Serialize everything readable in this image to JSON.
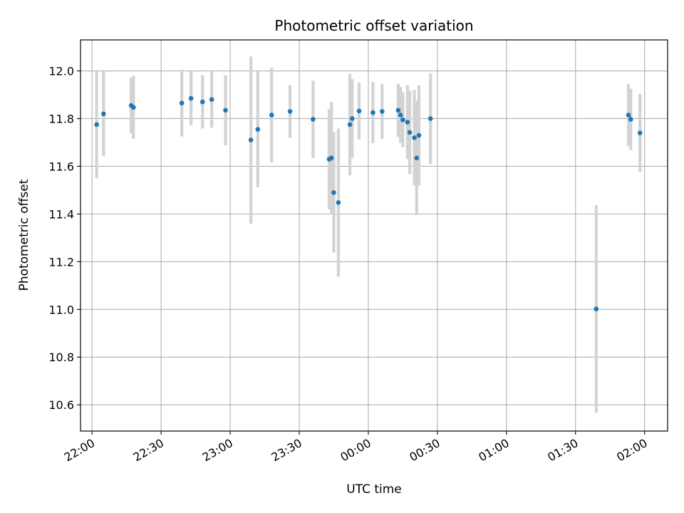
{
  "chart_data": {
    "type": "scatter",
    "title": "Photometric offset variation",
    "xlabel": "UTC time",
    "ylabel": "Photometric offset",
    "x_unit": "UTC time of day (HH:MM), 22:00 → 02:00 next day",
    "xlim": [
      "21:55",
      "02:10"
    ],
    "ylim": [
      10.49,
      12.13
    ],
    "grid": true,
    "x_ticks": [
      "22:00",
      "22:30",
      "23:00",
      "23:30",
      "00:00",
      "00:30",
      "01:00",
      "01:30",
      "02:00"
    ],
    "y_ticks": [
      "10.6",
      "10.8",
      "11.0",
      "11.2",
      "11.4",
      "11.6",
      "11.8",
      "12.0"
    ],
    "colors": {
      "points": "#1f77b4",
      "error_bars": "#d3d3d3",
      "grid": "#b0b0b0",
      "frame": "#000000"
    },
    "points": [
      {
        "x": "22:02",
        "y": 11.775,
        "err": 0.225
      },
      {
        "x": "22:05",
        "y": 11.82,
        "err": 0.178
      },
      {
        "x": "22:17",
        "y": 11.855,
        "err": 0.117
      },
      {
        "x": "22:18",
        "y": 11.847,
        "err": 0.132
      },
      {
        "x": "22:39",
        "y": 11.865,
        "err": 0.14
      },
      {
        "x": "22:43",
        "y": 11.885,
        "err": 0.113
      },
      {
        "x": "22:48",
        "y": 11.87,
        "err": 0.112
      },
      {
        "x": "22:52",
        "y": 11.88,
        "err": 0.118
      },
      {
        "x": "22:58",
        "y": 11.835,
        "err": 0.147
      },
      {
        "x": "23:09",
        "y": 11.71,
        "err": 0.35
      },
      {
        "x": "23:12",
        "y": 11.755,
        "err": 0.243
      },
      {
        "x": "23:18",
        "y": 11.815,
        "err": 0.198
      },
      {
        "x": "23:26",
        "y": 11.83,
        "err": 0.11
      },
      {
        "x": "23:36",
        "y": 11.797,
        "err": 0.162
      },
      {
        "x": "23:43",
        "y": 11.63,
        "err": 0.21
      },
      {
        "x": "23:44",
        "y": 11.635,
        "err": 0.235
      },
      {
        "x": "23:45",
        "y": 11.49,
        "err": 0.252
      },
      {
        "x": "23:47",
        "y": 11.448,
        "err": 0.31
      },
      {
        "x": "23:52",
        "y": 11.775,
        "err": 0.213
      },
      {
        "x": "23:53",
        "y": 11.8,
        "err": 0.165
      },
      {
        "x": "23:56",
        "y": 11.832,
        "err": 0.12
      },
      {
        "x": "00:02",
        "y": 11.825,
        "err": 0.128
      },
      {
        "x": "00:06",
        "y": 11.83,
        "err": 0.115
      },
      {
        "x": "00:13",
        "y": 11.835,
        "err": 0.112
      },
      {
        "x": "00:14",
        "y": 11.815,
        "err": 0.118
      },
      {
        "x": "00:15",
        "y": 11.795,
        "err": 0.115
      },
      {
        "x": "00:17",
        "y": 11.785,
        "err": 0.155
      },
      {
        "x": "00:18",
        "y": 11.742,
        "err": 0.175
      },
      {
        "x": "00:20",
        "y": 11.72,
        "err": 0.2
      },
      {
        "x": "00:21",
        "y": 11.635,
        "err": 0.24
      },
      {
        "x": "00:22",
        "y": 11.73,
        "err": 0.21
      },
      {
        "x": "00:27",
        "y": 11.8,
        "err": 0.19
      },
      {
        "x": "01:39",
        "y": 11.002,
        "err": 0.435
      },
      {
        "x": "01:53",
        "y": 11.815,
        "err": 0.13
      },
      {
        "x": "01:54",
        "y": 11.797,
        "err": 0.128
      },
      {
        "x": "01:58",
        "y": 11.74,
        "err": 0.163
      }
    ]
  }
}
